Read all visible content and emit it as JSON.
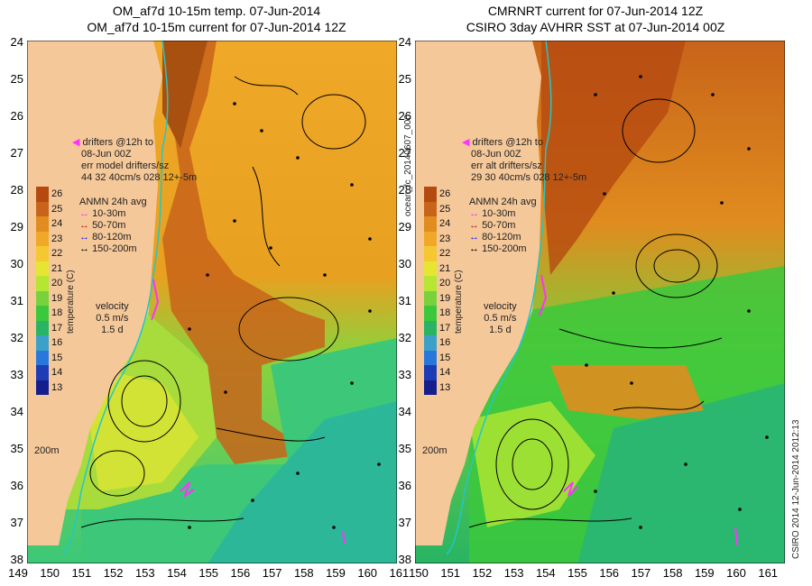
{
  "left_panel": {
    "title_line1": "OM_af7d 10-15m temp. 07-Jun-2014",
    "title_line2": "OM_af7d 10-15m current for 07-Jun-2014 12Z",
    "drifters_label": "drifters @12h to",
    "drifters_date": "08-Jun 00Z",
    "err_line": "err model drifters/sz",
    "err_values": "44   32      40cm/s  028 12+-5m",
    "anmn_title": "ANMN 24h avg",
    "anmn_items": [
      "10-30m",
      "50-70m",
      "80-120m",
      "150-200m"
    ],
    "velocity_label": "velocity",
    "velocity_value": "0.5 m/s",
    "velocity_time": "1.5 d",
    "contour_label": "200m",
    "colorbar_label": "temperature (C)"
  },
  "right_panel": {
    "title_line1": "CMRNRT current for 07-Jun-2014 12Z",
    "title_line2": "CSIRO 3day AVHRR SST at 07-Jun-2014 00Z",
    "drifters_label": "drifters @12h to",
    "drifters_date": "08-Jun 00Z",
    "err_line": "err alt drifters/sz",
    "err_values": "29 30 40cm/s 028 12+-5m",
    "anmn_title": "ANMN 24h avg",
    "anmn_items": [
      "10-30m",
      "50-70m",
      "80-120m",
      "150-200m"
    ],
    "velocity_label": "velocity",
    "velocity_value": "0.5 m/s",
    "velocity_time": "1.5 d",
    "contour_label": "200m",
    "colorbar_label": "temperature (C)",
    "forecast_id": "ocean_fc_20140607_000",
    "credit": "CSIRO 2014   12-Jun-2014 2012:13"
  },
  "anmn_colors": [
    "#ff33ff",
    "#cc2222",
    "#2222ff",
    "#000000"
  ],
  "colorbar_ticks": [
    "26",
    "25",
    "24",
    "23",
    "22",
    "21",
    "20",
    "19",
    "18",
    "17",
    "16",
    "15",
    "14",
    "13"
  ],
  "colorbar_colors": [
    "#b54a10",
    "#c8641a",
    "#e08c1e",
    "#f0a828",
    "#f5c832",
    "#e6e632",
    "#b4e632",
    "#78d23c",
    "#3cc83c",
    "#28b464",
    "#3ca0c8",
    "#2878dc",
    "#1e3cb4",
    "#141e8c"
  ],
  "lat_ticks": [
    "24",
    "25",
    "26",
    "27",
    "28",
    "29",
    "30",
    "31",
    "32",
    "33",
    "34",
    "35",
    "36",
    "37",
    "38"
  ],
  "lon_ticks_left": [
    "149",
    "150",
    "151",
    "152",
    "153",
    "154",
    "155",
    "156",
    "157",
    "158",
    "159",
    "160",
    "161"
  ],
  "lon_ticks_right": [
    "150",
    "151",
    "152",
    "153",
    "154",
    "155",
    "156",
    "157",
    "158",
    "159",
    "160",
    "161"
  ]
}
